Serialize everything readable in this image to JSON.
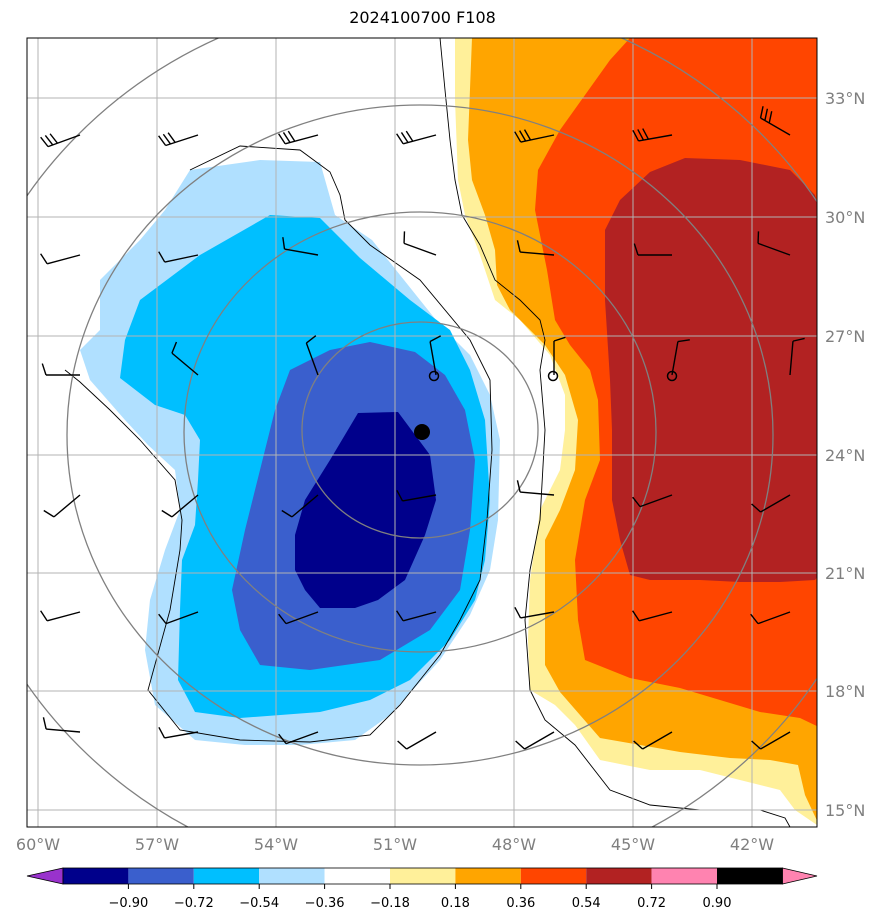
{
  "title": "2024100700 F108",
  "lon_labels": [
    "60°W",
    "57°W",
    "54°W",
    "51°W",
    "48°W",
    "45°W",
    "42°W"
  ],
  "lat_labels": [
    "33°N",
    "30°N",
    "27°N",
    "24°N",
    "21°N",
    "18°N",
    "15°N"
  ],
  "colorbar": {
    "ticks": [
      "−0.90",
      "−0.72",
      "−0.54",
      "−0.36",
      "−0.18",
      "0.18",
      "0.36",
      "0.54",
      "0.72",
      "0.90"
    ],
    "colors": [
      "#9932cc",
      "#00008b",
      "#3a5fcd",
      "#00bfff",
      "#b0e0ff",
      "#ffffff",
      "#fff09a",
      "#ffa500",
      "#ff4500",
      "#b22222",
      "#ff83b0"
    ]
  },
  "fill_colors": {
    "lb": "#b0e0ff",
    "mb": "#00bfff",
    "db": "#3a5fcd",
    "nb": "#00008b",
    "ly": "#fff09a",
    "or": "#ffa500",
    "ro": "#ff4500",
    "dr": "#b22222"
  },
  "line_colors": {
    "grid": "#b3b3b3",
    "contour": "#808080",
    "coast": "#000000"
  }
}
